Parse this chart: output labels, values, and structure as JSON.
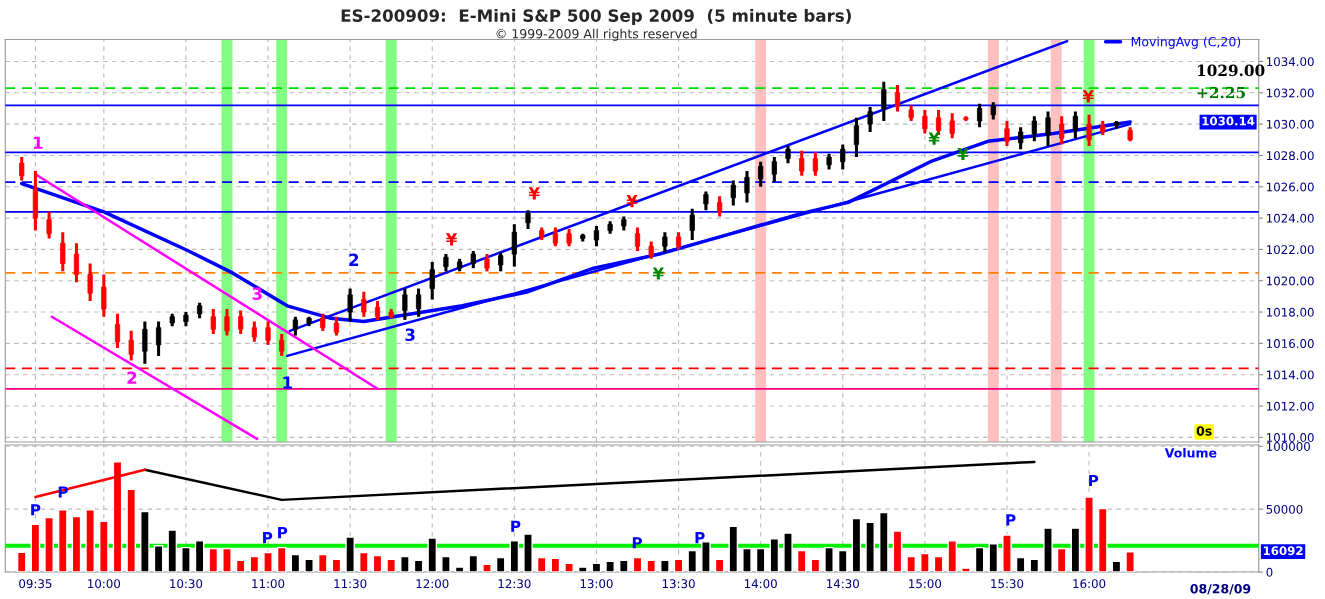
{
  "chart_data": [
    {
      "type": "candlestick",
      "title": "ES-200909:  E-Mini S&P 500 Sep 2009  (5 minute bars)",
      "subtitle": "© 1999-2009 All rights reserved",
      "x": [
        "2009-08-28T09:30",
        "2009-08-28T09:35",
        "2009-08-28T09:40",
        "2009-08-28T09:45",
        "2009-08-28T09:50",
        "2009-08-28T09:55",
        "2009-08-28T10:00",
        "2009-08-28T10:05",
        "2009-08-28T10:10",
        "2009-08-28T10:15",
        "2009-08-28T10:20",
        "2009-08-28T10:25",
        "2009-08-28T10:30",
        "2009-08-28T10:35",
        "2009-08-28T10:40",
        "2009-08-28T10:45",
        "2009-08-28T10:50",
        "2009-08-28T10:55",
        "2009-08-28T11:00",
        "2009-08-28T11:05",
        "2009-08-28T11:10",
        "2009-08-28T11:15",
        "2009-08-28T11:20",
        "2009-08-28T11:25",
        "2009-08-28T11:30",
        "2009-08-28T11:35",
        "2009-08-28T11:40",
        "2009-08-28T11:45",
        "2009-08-28T11:50",
        "2009-08-28T11:55",
        "2009-08-28T12:00",
        "2009-08-28T12:05",
        "2009-08-28T12:10",
        "2009-08-28T12:15",
        "2009-08-28T12:20",
        "2009-08-28T12:25",
        "2009-08-28T12:30",
        "2009-08-28T12:35",
        "2009-08-28T12:40",
        "2009-08-28T12:45",
        "2009-08-28T12:50",
        "2009-08-28T12:55",
        "2009-08-28T13:00",
        "2009-08-28T13:05",
        "2009-08-28T13:10",
        "2009-08-28T13:15",
        "2009-08-28T13:20",
        "2009-08-28T13:25",
        "2009-08-28T13:30",
        "2009-08-28T13:35",
        "2009-08-28T13:40",
        "2009-08-28T13:45",
        "2009-08-28T13:50",
        "2009-08-28T13:55",
        "2009-08-28T14:00",
        "2009-08-28T14:05",
        "2009-08-28T14:10",
        "2009-08-28T14:15",
        "2009-08-28T14:20",
        "2009-08-28T14:25",
        "2009-08-28T14:30",
        "2009-08-28T14:35",
        "2009-08-28T14:40",
        "2009-08-28T14:45",
        "2009-08-28T14:50",
        "2009-08-28T14:55",
        "2009-08-28T15:00",
        "2009-08-28T15:05",
        "2009-08-28T15:10",
        "2009-08-28T15:15",
        "2009-08-28T15:20",
        "2009-08-28T15:25",
        "2009-08-28T15:30",
        "2009-08-28T15:35",
        "2009-08-28T15:40",
        "2009-08-28T15:45",
        "2009-08-28T15:50",
        "2009-08-28T15:55",
        "2009-08-28T16:00",
        "2009-08-28T16:05",
        "2009-08-28T16:10",
        "2009-08-28T16:15"
      ],
      "ohlc": [
        [
          1027.5,
          1027.9,
          1026.4,
          1026.7
        ],
        [
          1025.9,
          1027.0,
          1023.2,
          1024.0
        ],
        [
          1023.9,
          1024.4,
          1022.7,
          1023.0
        ],
        [
          1022.4,
          1023.1,
          1020.6,
          1021.1
        ],
        [
          1021.7,
          1022.4,
          1019.9,
          1020.4
        ],
        [
          1020.4,
          1021.1,
          1018.7,
          1019.2
        ],
        [
          1019.6,
          1020.4,
          1017.7,
          1018.2
        ],
        [
          1017.2,
          1017.9,
          1015.7,
          1016.1
        ],
        [
          1016.2,
          1016.8,
          1014.9,
          1015.3
        ],
        [
          1015.5,
          1017.4,
          1014.7,
          1016.9
        ],
        [
          1015.9,
          1017.4,
          1015.2,
          1017.0
        ],
        [
          1017.3,
          1017.9,
          1017.1,
          1017.7
        ],
        [
          1017.4,
          1018.0,
          1017.1,
          1017.8
        ],
        [
          1017.9,
          1018.6,
          1017.6,
          1018.4
        ],
        [
          1017.7,
          1018.2,
          1016.6,
          1016.9
        ],
        [
          1017.7,
          1018.2,
          1016.5,
          1016.8
        ],
        [
          1017.7,
          1018.1,
          1016.6,
          1016.9
        ],
        [
          1017.0,
          1017.4,
          1016.1,
          1016.4
        ],
        [
          1017.0,
          1017.4,
          1015.9,
          1016.2
        ],
        [
          1016.2,
          1016.6,
          1015.2,
          1015.5
        ],
        [
          1016.9,
          1017.7,
          1016.5,
          1017.5
        ],
        [
          1017.3,
          1017.7,
          1017.1,
          1017.6
        ],
        [
          1017.6,
          1017.9,
          1016.8,
          1017.0
        ],
        [
          1017.3,
          1017.7,
          1016.5,
          1016.7
        ],
        [
          1018.0,
          1019.5,
          1017.4,
          1019.1
        ],
        [
          1018.8,
          1019.3,
          1017.7,
          1018.0
        ],
        [
          1018.3,
          1018.7,
          1017.5,
          1017.7
        ],
        [
          1018.0,
          1018.2,
          1017.6,
          1017.7
        ],
        [
          1018.1,
          1019.5,
          1017.5,
          1019.1
        ],
        [
          1018.2,
          1019.5,
          1017.7,
          1019.1
        ],
        [
          1019.5,
          1021.2,
          1018.8,
          1020.7
        ],
        [
          1020.9,
          1021.7,
          1020.6,
          1021.5
        ],
        [
          1020.8,
          1021.4,
          1020.6,
          1021.2
        ],
        [
          1021.1,
          1021.9,
          1020.8,
          1021.7
        ],
        [
          1021.4,
          1021.7,
          1020.6,
          1020.8
        ],
        [
          1021.0,
          1021.8,
          1020.6,
          1021.6
        ],
        [
          1021.7,
          1023.6,
          1020.9,
          1023.1
        ],
        [
          1023.7,
          1024.5,
          1023.3,
          1024.3
        ],
        [
          1023.2,
          1023.4,
          1022.6,
          1022.8
        ],
        [
          1023.0,
          1023.4,
          1022.2,
          1022.4
        ],
        [
          1023.0,
          1023.3,
          1022.2,
          1022.4
        ],
        [
          1022.7,
          1023.0,
          1022.5,
          1022.9
        ],
        [
          1022.6,
          1023.5,
          1022.2,
          1023.2
        ],
        [
          1023.2,
          1023.8,
          1023.0,
          1023.6
        ],
        [
          1023.5,
          1024.1,
          1023.2,
          1023.9
        ],
        [
          1023.0,
          1023.4,
          1021.9,
          1022.2
        ],
        [
          1022.2,
          1022.5,
          1021.4,
          1021.6
        ],
        [
          1022.2,
          1023.1,
          1021.8,
          1022.8
        ],
        [
          1022.8,
          1023.1,
          1022.0,
          1022.2
        ],
        [
          1023.2,
          1024.6,
          1022.6,
          1024.2
        ],
        [
          1024.9,
          1025.7,
          1024.5,
          1025.5
        ],
        [
          1025.0,
          1025.4,
          1024.1,
          1024.4
        ],
        [
          1025.3,
          1026.4,
          1024.8,
          1026.1
        ],
        [
          1025.6,
          1027.0,
          1025.0,
          1026.6
        ],
        [
          1026.5,
          1027.6,
          1026.0,
          1027.3
        ],
        [
          1026.8,
          1027.9,
          1026.3,
          1027.6
        ],
        [
          1027.8,
          1028.6,
          1027.5,
          1028.4
        ],
        [
          1027.8,
          1028.3,
          1026.7,
          1027.0
        ],
        [
          1027.8,
          1028.2,
          1026.7,
          1027.0
        ],
        [
          1027.4,
          1028.1,
          1027.1,
          1027.9
        ],
        [
          1027.6,
          1028.7,
          1027.1,
          1028.4
        ],
        [
          1028.7,
          1030.4,
          1027.9,
          1029.9
        ],
        [
          1030.0,
          1031.1,
          1029.5,
          1030.8
        ],
        [
          1031.0,
          1032.7,
          1030.2,
          1032.2
        ],
        [
          1032.0,
          1032.5,
          1030.8,
          1031.1
        ],
        [
          1030.9,
          1031.2,
          1030.2,
          1030.4
        ],
        [
          1030.5,
          1030.9,
          1029.4,
          1029.7
        ],
        [
          1030.4,
          1030.9,
          1029.3,
          1029.6
        ],
        [
          1030.2,
          1030.7,
          1029.1,
          1029.4
        ],
        [
          1030.4,
          1030.5,
          1030.2,
          1030.3
        ],
        [
          1030.2,
          1031.3,
          1029.8,
          1031.0
        ],
        [
          1030.6,
          1031.4,
          1030.3,
          1031.2
        ],
        [
          1029.7,
          1030.2,
          1028.6,
          1028.9
        ],
        [
          1028.8,
          1029.8,
          1028.4,
          1029.5
        ],
        [
          1029.4,
          1030.5,
          1028.9,
          1030.2
        ],
        [
          1029.3,
          1030.8,
          1028.6,
          1030.4
        ],
        [
          1030.0,
          1030.5,
          1028.7,
          1029.1
        ],
        [
          1029.6,
          1030.8,
          1029.1,
          1030.5
        ],
        [
          1030.0,
          1030.6,
          1028.6,
          1029.0
        ],
        [
          1029.9,
          1030.2,
          1029.3,
          1029.5
        ],
        [
          1029.9,
          1030.2,
          1029.7,
          1030.1
        ],
        [
          1029.6,
          1029.8,
          1028.9,
          1029.0
        ]
      ],
      "colors": [
        "#ff0000",
        "#ff0000",
        "#ff0000",
        "#ff0000",
        "#ff0000",
        "#ff0000",
        "#ff0000",
        "#ff0000",
        "#ff0000",
        "#000000",
        "#000000",
        "#000000",
        "#000000",
        "#000000",
        "#ff0000",
        "#ff0000",
        "#ff0000",
        "#ff0000",
        "#ff0000",
        "#ff0000",
        "#000000",
        "#000000",
        "#ff0000",
        "#ff0000",
        "#000000",
        "#ff0000",
        "#ff0000",
        "#ff0000",
        "#000000",
        "#000000",
        "#000000",
        "#000000",
        "#000000",
        "#000000",
        "#ff0000",
        "#000000",
        "#000000",
        "#000000",
        "#ff0000",
        "#ff0000",
        "#ff0000",
        "#000000",
        "#000000",
        "#000000",
        "#000000",
        "#ff0000",
        "#ff0000",
        "#000000",
        "#ff0000",
        "#000000",
        "#000000",
        "#ff0000",
        "#000000",
        "#000000",
        "#000000",
        "#000000",
        "#000000",
        "#ff0000",
        "#ff0000",
        "#000000",
        "#000000",
        "#000000",
        "#000000",
        "#000000",
        "#ff0000",
        "#ff0000",
        "#ff0000",
        "#ff0000",
        "#ff0000",
        "#ff0000",
        "#000000",
        "#000000",
        "#ff0000",
        "#000000",
        "#000000",
        "#000000",
        "#ff0000",
        "#000000",
        "#ff0000",
        "#ff0000",
        "#000000",
        "#ff0000"
      ],
      "series": [
        {
          "type": "line",
          "name": "MovingAvg (C,20)",
          "color": "#0000ff",
          "x": [
            "2009-08-28T09:30",
            "2009-08-28T10:00",
            "2009-08-28T10:31",
            "2009-08-28T10:47",
            "2009-08-28T11:07",
            "2009-08-28T11:23",
            "2009-08-28T11:35",
            "2009-08-28T12:11",
            "2009-08-28T12:35",
            "2009-08-28T12:59",
            "2009-08-28T13:23",
            "2009-08-28T13:47",
            "2009-08-28T14:15",
            "2009-08-28T14:32",
            "2009-08-28T15:02",
            "2009-08-28T15:23",
            "2009-08-28T15:47",
            "2009-08-28T16:15"
          ],
          "values": [
            1026.2,
            1024.4,
            1021.9,
            1020.5,
            1018.4,
            1017.6,
            1017.4,
            1018.4,
            1019.3,
            1020.8,
            1021.7,
            1022.9,
            1024.3,
            1025.0,
            1027.6,
            1028.9,
            1029.4,
            1030.14
          ]
        },
        {
          "type": "line",
          "color": "#0000ff",
          "x": [
            "2009-08-28T11:08",
            "2009-08-28T15:52"
          ],
          "values": [
            1016.8,
            1035.3
          ]
        },
        {
          "type": "line",
          "color": "#0000ff",
          "x": [
            "2009-08-28T11:07",
            "2009-08-28T16:15"
          ],
          "values": [
            1015.2,
            1030.0
          ]
        },
        {
          "type": "line",
          "color": "#ff00ff",
          "x": [
            "2009-08-28T09:35",
            "2009-08-28T11:40"
          ],
          "values": [
            1026.8,
            1013.1
          ]
        },
        {
          "type": "line",
          "color": "#ff00ff",
          "x": [
            "2009-08-28T09:41",
            "2009-08-28T10:56"
          ],
          "values": [
            1017.7,
            1009.9
          ]
        }
      ],
      "ref_lines": [
        {
          "axis": "y",
          "value": 1032.3,
          "color": "#00dd00",
          "line_style": "dashed"
        },
        {
          "axis": "y",
          "value": 1031.2,
          "color": "#0000ff",
          "line_style": "solid"
        },
        {
          "axis": "y",
          "value": 1028.2,
          "color": "#0000ff",
          "line_style": "solid"
        },
        {
          "axis": "y",
          "value": 1026.3,
          "color": "#0000ff",
          "line_style": "dashed"
        },
        {
          "axis": "y",
          "value": 1024.4,
          "color": "#0000ff",
          "line_style": "solid"
        },
        {
          "axis": "y",
          "value": 1020.5,
          "color": "#ff8000",
          "line_style": "dashed"
        },
        {
          "axis": "y",
          "value": 1014.4,
          "color": "#ff0000",
          "line_style": "dashed"
        },
        {
          "axis": "y",
          "value": 1013.1,
          "color": "#ff0080",
          "line_style": "solid"
        }
      ],
      "bands": [
        {
          "axis": "x",
          "from": "2009-08-28T10:43",
          "to": "2009-08-28T10:47",
          "color": "#80ff80"
        },
        {
          "axis": "x",
          "from": "2009-08-28T11:03",
          "to": "2009-08-28T11:07",
          "color": "#80ff80"
        },
        {
          "axis": "x",
          "from": "2009-08-28T11:43",
          "to": "2009-08-28T11:47",
          "color": "#80ff80"
        },
        {
          "axis": "x",
          "from": "2009-08-28T15:58",
          "to": "2009-08-28T16:02",
          "color": "#80ff80"
        },
        {
          "axis": "x",
          "from": "2009-08-28T13:58",
          "to": "2009-08-28T14:02",
          "color": "#ffc0c0"
        },
        {
          "axis": "x",
          "from": "2009-08-28T15:23",
          "to": "2009-08-28T15:27",
          "color": "#ffc0c0"
        },
        {
          "axis": "x",
          "from": "2009-08-28T15:46",
          "to": "2009-08-28T15:50",
          "color": "#ffc0c0"
        }
      ],
      "annotations": [
        "1",
        "2",
        "3",
        "1",
        "2",
        "3",
        "¥",
        "¥",
        "¥",
        "¥",
        "¥",
        "¥",
        "¥",
        "1029.00",
        "+2.25",
        "1030.14",
        "0s"
      ],
      "xlim": [
        "2009-08-28T09:24",
        "2009-08-28T17:02"
      ],
      "xticks": [
        {
          "value": "2009-08-28T09:35",
          "label": null
        },
        {
          "value": "2009-08-28T10:00",
          "label": null
        },
        {
          "value": "2009-08-28T10:30",
          "label": null
        },
        {
          "value": "2009-08-28T11:00",
          "label": null
        },
        {
          "value": "2009-08-28T11:30",
          "label": null
        },
        {
          "value": "2009-08-28T12:00",
          "label": null
        },
        {
          "value": "2009-08-28T12:30",
          "label": null
        },
        {
          "value": "2009-08-28T13:00",
          "label": null
        },
        {
          "value": "2009-08-28T13:30",
          "label": null
        },
        {
          "value": "2009-08-28T14:00",
          "label": null
        },
        {
          "value": "2009-08-28T14:30",
          "label": null
        },
        {
          "value": "2009-08-28T15:00",
          "label": null
        },
        {
          "value": "2009-08-28T15:30",
          "label": null
        },
        {
          "value": "2009-08-28T16:00",
          "label": null
        }
      ],
      "ylim": [
        1009.7,
        1035.4
      ],
      "yticks": [
        {
          "value": 1010,
          "label": "1010.00"
        },
        {
          "value": 1012,
          "label": "1012.00"
        },
        {
          "value": 1014,
          "label": "1014.00"
        },
        {
          "value": 1016,
          "label": "1016.00"
        },
        {
          "value": 1018,
          "label": "1018.00"
        },
        {
          "value": 1020,
          "label": "1020.00"
        },
        {
          "value": 1022,
          "label": "1022.00"
        },
        {
          "value": 1024,
          "label": "1024.00"
        },
        {
          "value": 1026,
          "label": "1026.00"
        },
        {
          "value": 1028,
          "label": "1028.00"
        },
        {
          "value": 1030,
          "label": "1030.00"
        },
        {
          "value": 1032,
          "label": "1032.00"
        },
        {
          "value": 1034,
          "label": "1034.00"
        }
      ],
      "tick_labels": "y",
      "grid": true,
      "legend": "top right"
    },
    {
      "type": "bar",
      "x": [
        "2009-08-28T09:30",
        "2009-08-28T09:35",
        "2009-08-28T09:40",
        "2009-08-28T09:45",
        "2009-08-28T09:50",
        "2009-08-28T09:55",
        "2009-08-28T10:00",
        "2009-08-28T10:05",
        "2009-08-28T10:10",
        "2009-08-28T10:15",
        "2009-08-28T10:20",
        "2009-08-28T10:25",
        "2009-08-28T10:30",
        "2009-08-28T10:35",
        "2009-08-28T10:40",
        "2009-08-28T10:45",
        "2009-08-28T10:50",
        "2009-08-28T10:55",
        "2009-08-28T11:00",
        "2009-08-28T11:05",
        "2009-08-28T11:10",
        "2009-08-28T11:15",
        "2009-08-28T11:20",
        "2009-08-28T11:25",
        "2009-08-28T11:30",
        "2009-08-28T11:35",
        "2009-08-28T11:40",
        "2009-08-28T11:45",
        "2009-08-28T11:50",
        "2009-08-28T11:55",
        "2009-08-28T12:00",
        "2009-08-28T12:05",
        "2009-08-28T12:10",
        "2009-08-28T12:15",
        "2009-08-28T12:20",
        "2009-08-28T12:25",
        "2009-08-28T12:30",
        "2009-08-28T12:35",
        "2009-08-28T12:40",
        "2009-08-28T12:45",
        "2009-08-28T12:50",
        "2009-08-28T12:55",
        "2009-08-28T13:00",
        "2009-08-28T13:05",
        "2009-08-28T13:10",
        "2009-08-28T13:15",
        "2009-08-28T13:20",
        "2009-08-28T13:25",
        "2009-08-28T13:30",
        "2009-08-28T13:35",
        "2009-08-28T13:40",
        "2009-08-28T13:45",
        "2009-08-28T13:50",
        "2009-08-28T13:55",
        "2009-08-28T14:00",
        "2009-08-28T14:05",
        "2009-08-28T14:10",
        "2009-08-28T14:15",
        "2009-08-28T14:20",
        "2009-08-28T14:25",
        "2009-08-28T14:30",
        "2009-08-28T14:35",
        "2009-08-28T14:40",
        "2009-08-28T14:45",
        "2009-08-28T14:50",
        "2009-08-28T14:55",
        "2009-08-28T15:00",
        "2009-08-28T15:05",
        "2009-08-28T15:10",
        "2009-08-28T15:15",
        "2009-08-28T15:20",
        "2009-08-28T15:25",
        "2009-08-28T15:30",
        "2009-08-28T15:35",
        "2009-08-28T15:40",
        "2009-08-28T15:45",
        "2009-08-28T15:50",
        "2009-08-28T15:55",
        "2009-08-28T16:00",
        "2009-08-28T16:05",
        "2009-08-28T16:10",
        "2009-08-28T16:15"
      ],
      "values": [
        15700,
        38000,
        43400,
        49600,
        44200,
        49600,
        40300,
        87600,
        65900,
        48100,
        20900,
        33300,
        19400,
        24800,
        18600,
        18600,
        9300,
        12400,
        15500,
        19400,
        14000,
        10100,
        14000,
        10100,
        27900,
        15500,
        13200,
        10100,
        12400,
        9300,
        27100,
        12400,
        3900,
        13200,
        6200,
        11600,
        24800,
        30200,
        11600,
        10900,
        7000,
        3900,
        7000,
        8500,
        9300,
        11600,
        9300,
        9300,
        10100,
        17100,
        24000,
        10100,
        36400,
        18600,
        18600,
        26400,
        31000,
        17100,
        10100,
        19400,
        17100,
        42600,
        39500,
        47300,
        32600,
        12400,
        14700,
        12400,
        24800,
        3100,
        19400,
        22500,
        29500,
        11600,
        10100,
        34900,
        18600,
        34900,
        59700,
        50400,
        8500,
        16092
      ],
      "colors": [
        "#ff0000",
        "#ff0000",
        "#ff0000",
        "#ff0000",
        "#ff0000",
        "#ff0000",
        "#ff0000",
        "#ff0000",
        "#ff0000",
        "#000000",
        "#000000",
        "#000000",
        "#000000",
        "#000000",
        "#ff0000",
        "#ff0000",
        "#ff0000",
        "#ff0000",
        "#ff0000",
        "#ff0000",
        "#000000",
        "#000000",
        "#ff0000",
        "#ff0000",
        "#000000",
        "#ff0000",
        "#ff0000",
        "#ff0000",
        "#000000",
        "#000000",
        "#000000",
        "#000000",
        "#000000",
        "#000000",
        "#ff0000",
        "#000000",
        "#000000",
        "#000000",
        "#ff0000",
        "#ff0000",
        "#ff0000",
        "#000000",
        "#000000",
        "#000000",
        "#000000",
        "#ff0000",
        "#ff0000",
        "#000000",
        "#ff0000",
        "#000000",
        "#000000",
        "#ff0000",
        "#000000",
        "#000000",
        "#000000",
        "#000000",
        "#000000",
        "#ff0000",
        "#ff0000",
        "#000000",
        "#000000",
        "#000000",
        "#000000",
        "#000000",
        "#ff0000",
        "#ff0000",
        "#ff0000",
        "#ff0000",
        "#ff0000",
        "#ff0000",
        "#000000",
        "#000000",
        "#ff0000",
        "#000000",
        "#000000",
        "#000000",
        "#ff0000",
        "#000000",
        "#ff0000",
        "#ff0000",
        "#000000",
        "#ff0000"
      ],
      "series": [
        {
          "type": "line",
          "color": "#000000",
          "x": [
            "2009-08-28T10:15",
            "2009-08-28T11:05",
            "2009-08-28T15:40"
          ],
          "values": [
            81400,
            57400,
            87600
          ]
        },
        {
          "type": "line",
          "color": "#ff0000",
          "x": [
            "2009-08-28T09:35",
            "2009-08-28T10:15"
          ],
          "values": [
            59700,
            81400
          ]
        }
      ],
      "ref_lines": [
        {
          "axis": "y",
          "value": 20900,
          "color": "#00ee00",
          "line_style": "solid"
        }
      ],
      "annotations": [
        "P",
        "P",
        "P",
        "P",
        "P",
        "P",
        "P",
        "P",
        "P",
        "Volume",
        "16092",
        "08/28/09"
      ],
      "xlim": [
        "2009-08-28T09:24",
        "2009-08-28T17:02"
      ],
      "xticks": [
        {
          "value": "2009-08-28T09:35",
          "label": "09:35"
        },
        {
          "value": "2009-08-28T10:00",
          "label": "10:00"
        },
        {
          "value": "2009-08-28T10:30",
          "label": "10:30"
        },
        {
          "value": "2009-08-28T11:00",
          "label": "11:00"
        },
        {
          "value": "2009-08-28T11:30",
          "label": "11:30"
        },
        {
          "value": "2009-08-28T12:00",
          "label": "12:00"
        },
        {
          "value": "2009-08-28T12:30",
          "label": "12:30"
        },
        {
          "value": "2009-08-28T13:00",
          "label": "13:00"
        },
        {
          "value": "2009-08-28T13:30",
          "label": "13:30"
        },
        {
          "value": "2009-08-28T14:00",
          "label": "14:00"
        },
        {
          "value": "2009-08-28T14:30",
          "label": "14:30"
        },
        {
          "value": "2009-08-28T15:00",
          "label": "15:00"
        },
        {
          "value": "2009-08-28T15:30",
          "label": "15:30"
        },
        {
          "value": "2009-08-28T16:00",
          "label": "16:00"
        }
      ],
      "ylim": [
        0,
        101000
      ],
      "yticks": [
        0,
        50000,
        100000
      ],
      "grid": true
    }
  ]
}
